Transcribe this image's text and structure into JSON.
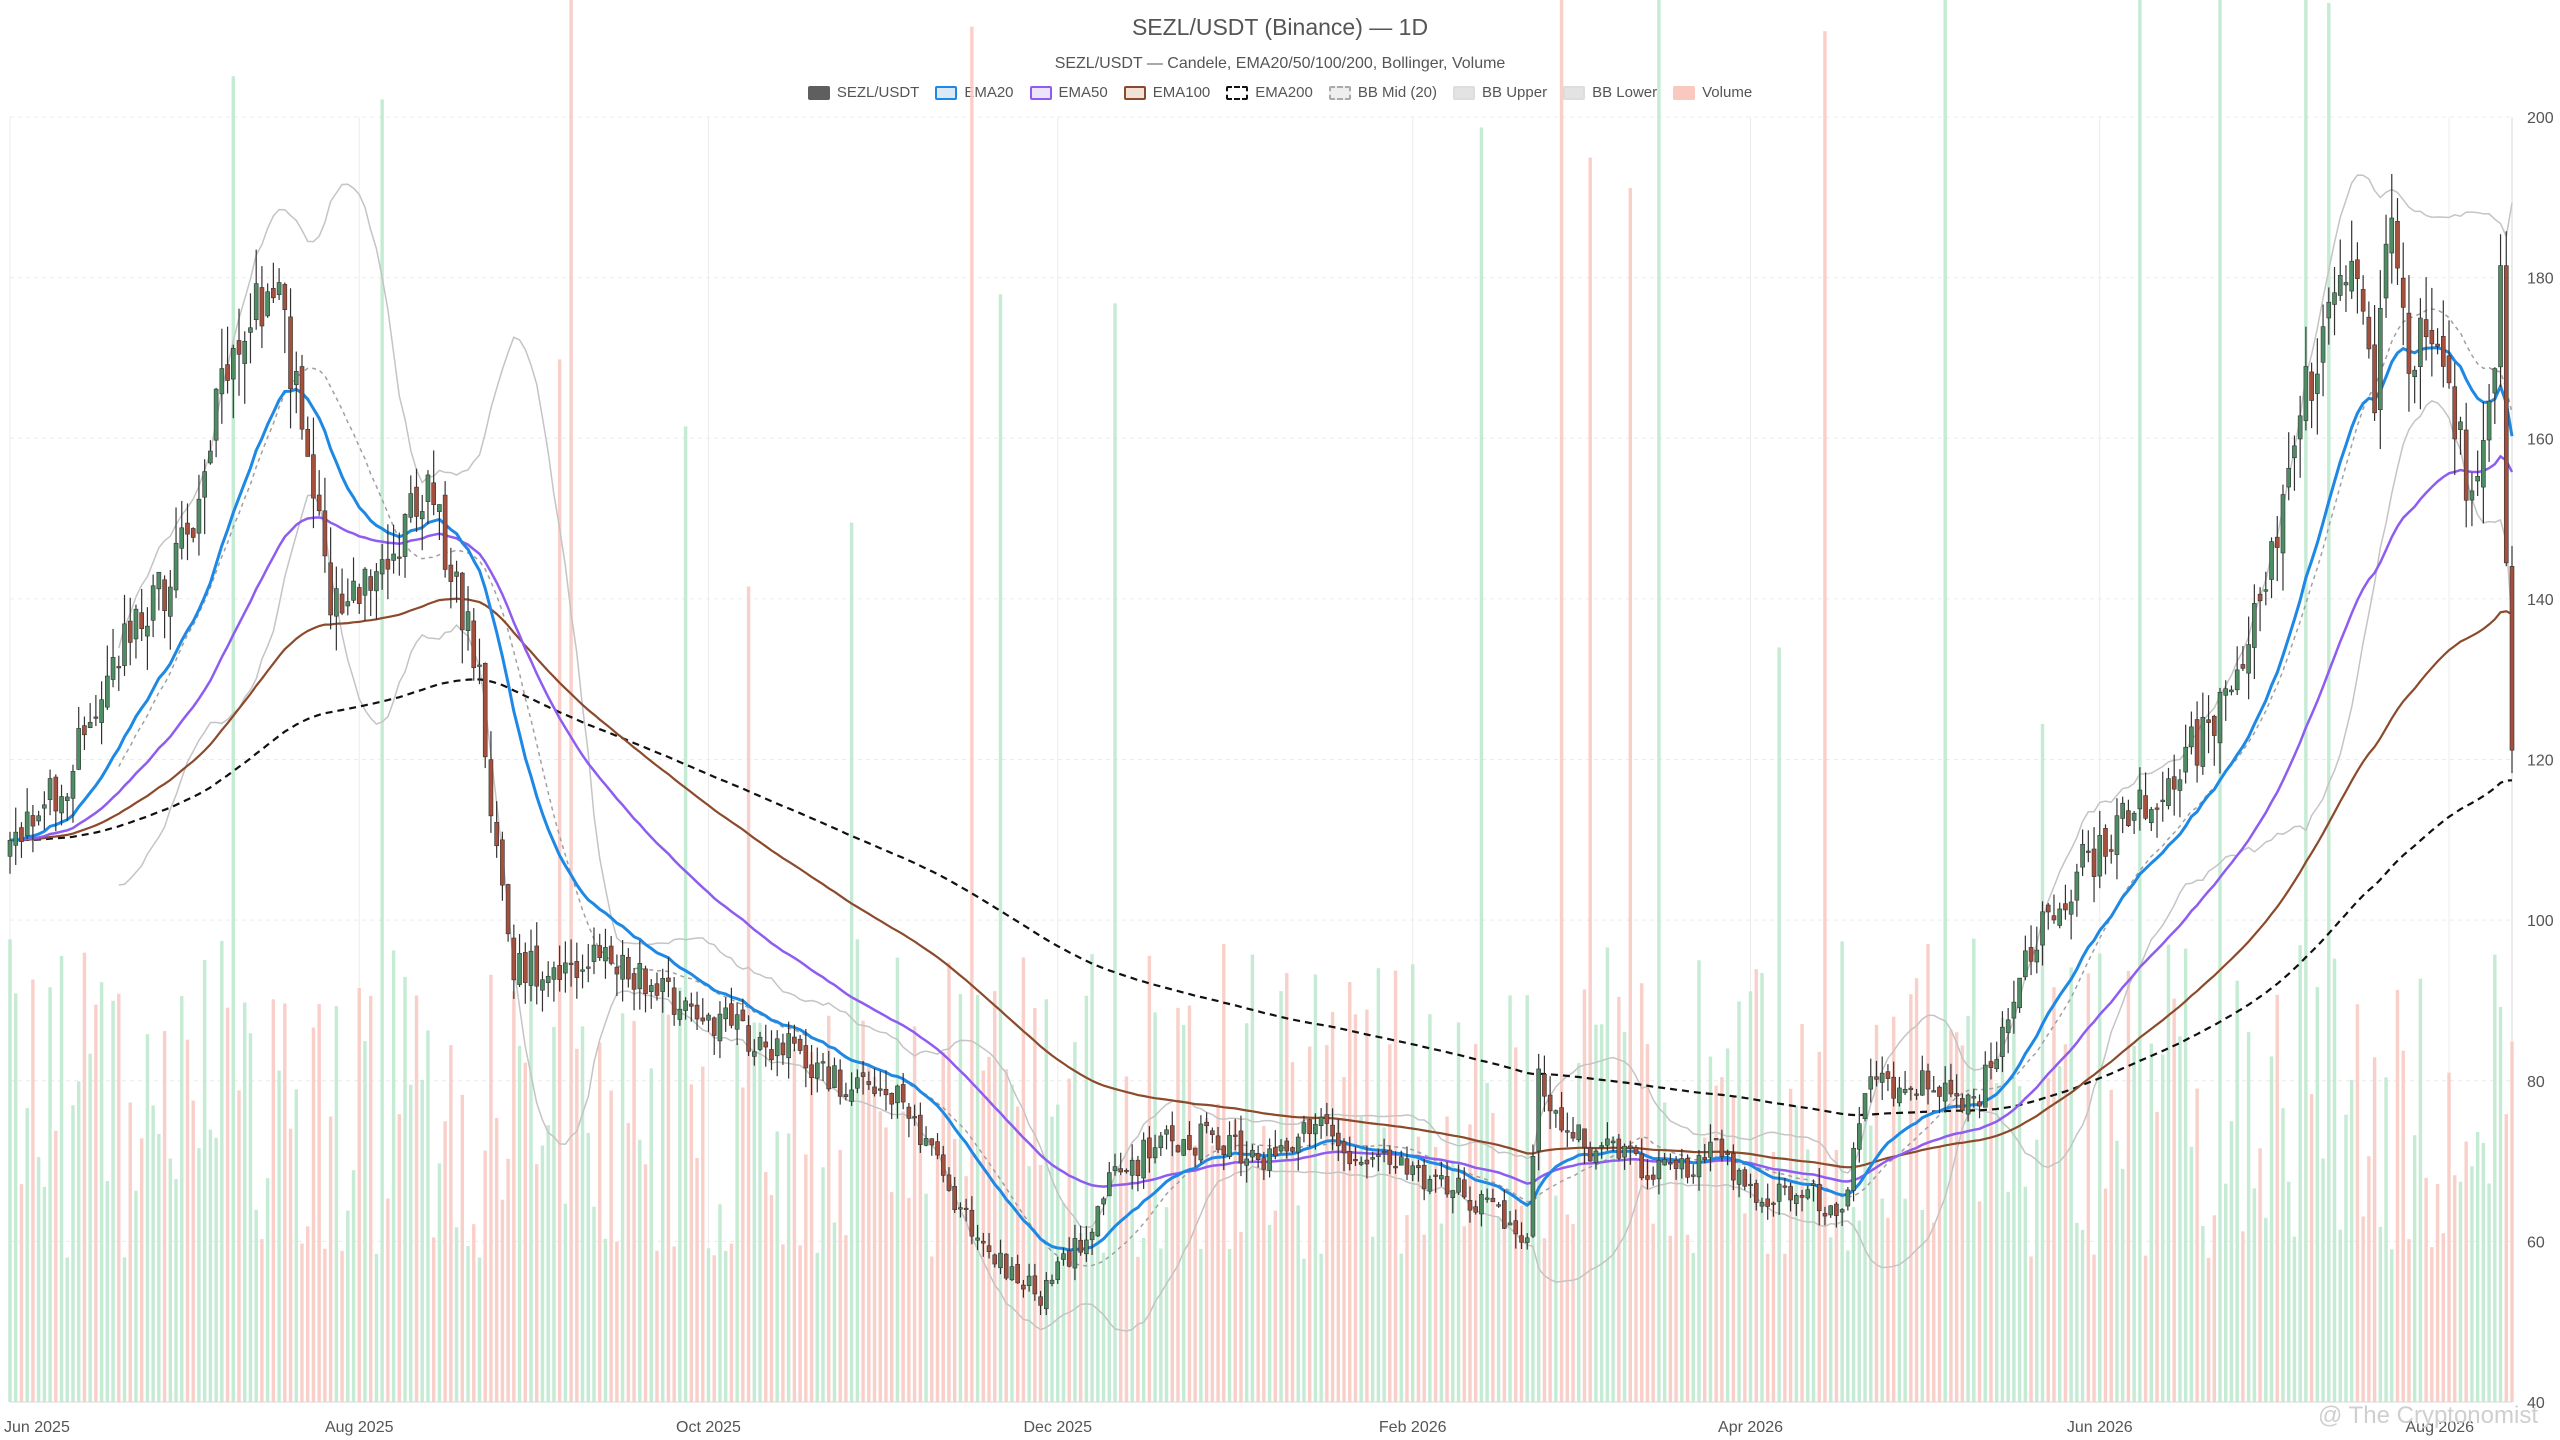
{
  "chart_data": {
    "type": "candlestick",
    "title": "SEZL/USDT (Binance) — 1D",
    "subtitle": "SEZL/USDT — Candele, EMA20/50/100/200, Bollinger, Volume",
    "ylim": [
      40,
      200
    ],
    "y_ticks": [
      40,
      60,
      80,
      100,
      120,
      140,
      160,
      180,
      200
    ],
    "x_range": [
      "2025-06-01",
      "2026-08-12"
    ],
    "x_ticks": [
      {
        "date": "2025-06-01",
        "label": "Jun 2025"
      },
      {
        "date": "2025-08-01",
        "label": "Aug 2025"
      },
      {
        "date": "2025-10-01",
        "label": "Oct 2025"
      },
      {
        "date": "2025-12-01",
        "label": "Dec 2025"
      },
      {
        "date": "2026-02-01",
        "label": "Feb 2026"
      },
      {
        "date": "2026-04-01",
        "label": "Apr 2026"
      },
      {
        "date": "2026-06-01",
        "label": "Jun 2026"
      },
      {
        "date": "2026-08-01",
        "label": "Aug 2026"
      }
    ],
    "grid": true,
    "legend_position": "top",
    "legend": [
      {
        "label": "SEZL/USDT",
        "fill": "#5f5f5f",
        "stroke": "#5f5f5f",
        "dash": false
      },
      {
        "label": "EMA20",
        "fill": "#dbe9f7",
        "stroke": "#1e88e5",
        "dash": false
      },
      {
        "label": "EMA50",
        "fill": "#ece4fb",
        "stroke": "#8e5cf0",
        "dash": false
      },
      {
        "label": "EMA100",
        "fill": "#f1e2d8",
        "stroke": "#8b4a2b",
        "dash": false
      },
      {
        "label": "EMA200",
        "fill": "#ffffff",
        "stroke": "#111111",
        "dash": true
      },
      {
        "label": "BB Mid (20)",
        "fill": "#eeeeee",
        "stroke": "#aaaaaa",
        "dash": true
      },
      {
        "label": "BB Upper",
        "fill": "#e3e3e3",
        "stroke": "#dddddd",
        "dash": false
      },
      {
        "label": "BB Lower",
        "fill": "#e3e3e3",
        "stroke": "#dddddd",
        "dash": false
      },
      {
        "label": "Volume",
        "fill": "#f9c9c0",
        "stroke": "#f9c9c0",
        "dash": false
      }
    ],
    "colors": {
      "up": "#4e8d63",
      "down": "#a5503d",
      "vol_up": "#bfe9cf",
      "vol_down": "#f8cbc3",
      "ema20": "#1e88e5",
      "ema50": "#8e5cf0",
      "ema100": "#8b4a2b",
      "ema200": "#111111",
      "bb": "#c4c4c4",
      "bb_mid": "#a0a0a0"
    },
    "close_anchors": [
      [
        "2025-06-01",
        109
      ],
      [
        "2025-06-10",
        117
      ],
      [
        "2025-06-20",
        132
      ],
      [
        "2025-07-01",
        145
      ],
      [
        "2025-07-08",
        165
      ],
      [
        "2025-07-12",
        175
      ],
      [
        "2025-07-18",
        178
      ],
      [
        "2025-07-24",
        150
      ],
      [
        "2025-07-28",
        138
      ],
      [
        "2025-08-03",
        145
      ],
      [
        "2025-08-10",
        150
      ],
      [
        "2025-08-14",
        152
      ],
      [
        "2025-08-18",
        140
      ],
      [
        "2025-08-22",
        132
      ],
      [
        "2025-08-25",
        107
      ],
      [
        "2025-08-28",
        94
      ],
      [
        "2025-09-10",
        95
      ],
      [
        "2025-09-20",
        93
      ],
      [
        "2025-10-01",
        88
      ],
      [
        "2025-10-15",
        84
      ],
      [
        "2025-10-25",
        79
      ],
      [
        "2025-11-05",
        77
      ],
      [
        "2025-11-12",
        66
      ],
      [
        "2025-11-20",
        58
      ],
      [
        "2025-11-28",
        53
      ],
      [
        "2025-12-05",
        60
      ],
      [
        "2025-12-10",
        67
      ],
      [
        "2025-12-18",
        72
      ],
      [
        "2025-12-28",
        73
      ],
      [
        "2026-01-05",
        70
      ],
      [
        "2026-01-15",
        75
      ],
      [
        "2026-01-22",
        71
      ],
      [
        "2026-02-01",
        69
      ],
      [
        "2026-02-08",
        67
      ],
      [
        "2026-02-16",
        63
      ],
      [
        "2026-02-21",
        60
      ],
      [
        "2026-02-23",
        80
      ],
      [
        "2026-03-01",
        73
      ],
      [
        "2026-03-10",
        70
      ],
      [
        "2026-03-20",
        69
      ],
      [
        "2026-03-25",
        72
      ],
      [
        "2026-04-02",
        65
      ],
      [
        "2026-04-12",
        66
      ],
      [
        "2026-04-16",
        62
      ],
      [
        "2026-04-22",
        80
      ],
      [
        "2026-05-01",
        80
      ],
      [
        "2026-05-08",
        76
      ],
      [
        "2026-05-14",
        82
      ],
      [
        "2026-05-20",
        96
      ],
      [
        "2026-05-28",
        106
      ],
      [
        "2026-06-05",
        112
      ],
      [
        "2026-06-15",
        120
      ],
      [
        "2026-06-25",
        128
      ],
      [
        "2026-07-01",
        147
      ],
      [
        "2026-07-06",
        162
      ],
      [
        "2026-07-10",
        172
      ],
      [
        "2026-07-15",
        178
      ],
      [
        "2026-07-19",
        167
      ],
      [
        "2026-07-22",
        188
      ],
      [
        "2026-07-25",
        168
      ],
      [
        "2026-07-28",
        174
      ],
      [
        "2026-08-02",
        160
      ],
      [
        "2026-08-06",
        152
      ],
      [
        "2026-08-10",
        178
      ],
      [
        "2026-08-12",
        119
      ]
    ],
    "volume_ylim": [
      0,
      360
    ]
  },
  "watermark": "@ The Cryptonomist"
}
